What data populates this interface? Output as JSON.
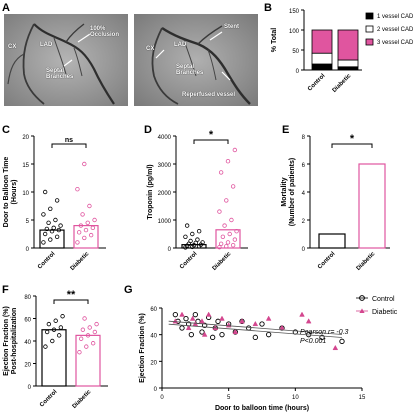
{
  "panel_letters": {
    "A": "A",
    "B": "B",
    "C": "C",
    "D": "D",
    "E": "E",
    "F": "F",
    "G": "G"
  },
  "angiograms": {
    "left": {
      "cx": "CX",
      "lad": "LAD",
      "occlusion": "100%\nOcclusion",
      "septal": "Septal\nBranches"
    },
    "right": {
      "stent": "Stent",
      "cx": "CX",
      "lad": "LAD",
      "septal": "Septal\nBranches",
      "reperfused": "Reperfused vessel"
    }
  },
  "chart_data": [
    {
      "id": "B",
      "type": "bar",
      "stacked": true,
      "categories": [
        "Control",
        "Diabetic"
      ],
      "ylabel": "% Total",
      "ylim": [
        0,
        150
      ],
      "yticks": [
        0,
        50,
        100,
        150
      ],
      "series": [
        {
          "name": "1 vessel CAD",
          "color": "#000000",
          "values": [
            15,
            8
          ]
        },
        {
          "name": "2 vessel CAD",
          "color": "#ffffff",
          "values": [
            27,
            17
          ]
        },
        {
          "name": "3 vessel CAD",
          "color": "#e0559f",
          "values": [
            58,
            75
          ]
        }
      ],
      "legend": "right"
    },
    {
      "id": "C",
      "type": "bar",
      "categories": [
        "Control",
        "Diabetic"
      ],
      "ylabel": "Door to Balloon Time\n(Hours)",
      "ylim": [
        0,
        20
      ],
      "yticks": [
        0,
        5,
        10,
        15,
        20
      ],
      "values": [
        3.2,
        4.0
      ],
      "points": [
        [
          1,
          1.5,
          2,
          2.5,
          3,
          3.2,
          3.4,
          3.6,
          4,
          4.5,
          5,
          6,
          7,
          8.5,
          10
        ],
        [
          1,
          1.8,
          2.3,
          2.8,
          3.2,
          3.6,
          4,
          4.5,
          5,
          6,
          7.5,
          10.5,
          15
        ]
      ],
      "annotation": "ns"
    },
    {
      "id": "D",
      "type": "bar",
      "categories": [
        "Control",
        "Diabetic"
      ],
      "ylabel": "Troponin (pg/ml)",
      "ylim": [
        0,
        4000
      ],
      "yticks": [
        0,
        1000,
        2000,
        3000,
        4000
      ],
      "values": [
        120,
        650
      ],
      "points": [
        [
          20,
          40,
          60,
          80,
          100,
          120,
          150,
          180,
          200,
          250,
          300,
          400,
          500,
          600,
          800
        ],
        [
          30,
          60,
          100,
          150,
          200,
          300,
          400,
          500,
          600,
          800,
          1000,
          1300,
          1700,
          2200,
          2700,
          3100,
          3500
        ]
      ],
      "annotation": "*"
    },
    {
      "id": "E",
      "type": "bar",
      "categories": [
        "Control",
        "Diabetic"
      ],
      "ylabel": "Mortality\n(Number of patients)",
      "ylim": [
        0,
        8
      ],
      "yticks": [
        0,
        2,
        4,
        6,
        8
      ],
      "values": [
        1,
        6
      ],
      "annotation": "*"
    },
    {
      "id": "F",
      "type": "bar",
      "categories": [
        "Control",
        "Diabetic"
      ],
      "ylabel": "Ejection Fraction (%)\nPost-hospitalization",
      "ylim": [
        0,
        80
      ],
      "yticks": [
        0,
        20,
        40,
        60,
        80
      ],
      "values": [
        50,
        45
      ],
      "points": [
        [
          35,
          40,
          45,
          48,
          50,
          52,
          55,
          58,
          62
        ],
        [
          30,
          35,
          38,
          42,
          45,
          48,
          50,
          52,
          55,
          60
        ]
      ],
      "annotation": "**"
    },
    {
      "id": "G",
      "type": "scatter",
      "xlabel": "Door to balloon time (hours)",
      "ylabel": "Ejection Fraction (%)",
      "xlim": [
        0,
        15
      ],
      "ylim": [
        0,
        60
      ],
      "xticks": [
        0,
        5,
        10,
        15
      ],
      "yticks": [
        0,
        20,
        40,
        60
      ],
      "annotation": "Pearson r= -0.3\nP<0.001",
      "legend": "top-right",
      "series": [
        {
          "name": "Control",
          "marker": "circle",
          "color": "#000000",
          "x": [
            1,
            1.2,
            1.5,
            1.8,
            2,
            2.2,
            2.5,
            2.7,
            3,
            3.2,
            3.5,
            3.8,
            4,
            4.2,
            4.5,
            5,
            5.5,
            6,
            6.5,
            7,
            7.5,
            8,
            9,
            10,
            11,
            12,
            13.5
          ],
          "y": [
            55,
            50,
            45,
            52,
            48,
            40,
            55,
            50,
            42,
            47,
            53,
            38,
            45,
            50,
            40,
            48,
            42,
            50,
            45,
            38,
            48,
            40,
            45,
            42,
            40,
            38,
            35
          ]
        },
        {
          "name": "Diabetic",
          "marker": "triangle",
          "color": "#d4478f",
          "x": [
            1,
            1.5,
            2,
            2.3,
            2.5,
            3,
            3.2,
            3.5,
            4,
            4.5,
            5,
            5.5,
            6,
            7,
            8,
            9,
            10.5,
            11,
            13
          ],
          "y": [
            50,
            55,
            45,
            52,
            48,
            50,
            40,
            55,
            45,
            52,
            47,
            42,
            50,
            48,
            52,
            45,
            55,
            50,
            30
          ]
        }
      ],
      "trend": {
        "x": [
          0.5,
          13.5
        ],
        "y": [
          49,
          39
        ]
      }
    }
  ]
}
